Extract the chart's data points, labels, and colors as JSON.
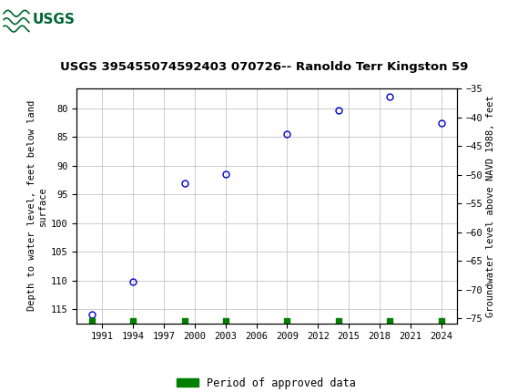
{
  "title": "USGS 395455074592403 070726-- Ranoldo Terr Kingston 59",
  "ylabel_left": "Depth to water level, feet below land\nsurface",
  "ylabel_right": "Groundwater level above NAVD 1988, feet",
  "header_color": "#006633",
  "header_text_color": "#ffffff",
  "x_data": [
    1990,
    1994,
    1999,
    2003,
    2009,
    2014,
    2019,
    2024
  ],
  "y_data": [
    116.0,
    110.3,
    93.0,
    91.5,
    84.5,
    80.3,
    78.0,
    82.5
  ],
  "xticks": [
    1991,
    1994,
    1997,
    2000,
    2003,
    2006,
    2009,
    2012,
    2015,
    2018,
    2021,
    2024
  ],
  "ylim_left": [
    117.5,
    76.5
  ],
  "yticks_left": [
    80,
    85,
    90,
    95,
    100,
    105,
    110,
    115
  ],
  "ylim_right": [
    -75.9,
    -34.9
  ],
  "yticks_right": [
    -75,
    -70,
    -65,
    -60,
    -55,
    -50,
    -45,
    -40,
    -35
  ],
  "marker_color": "#0000cc",
  "marker_size": 5,
  "grid_color": "#cccccc",
  "background_color": "#ffffff",
  "legend_label": "Period of approved data",
  "legend_color": "#008000",
  "green_bar_x": [
    1990,
    1994,
    1999,
    2003,
    2009,
    2014,
    2019,
    2024
  ]
}
